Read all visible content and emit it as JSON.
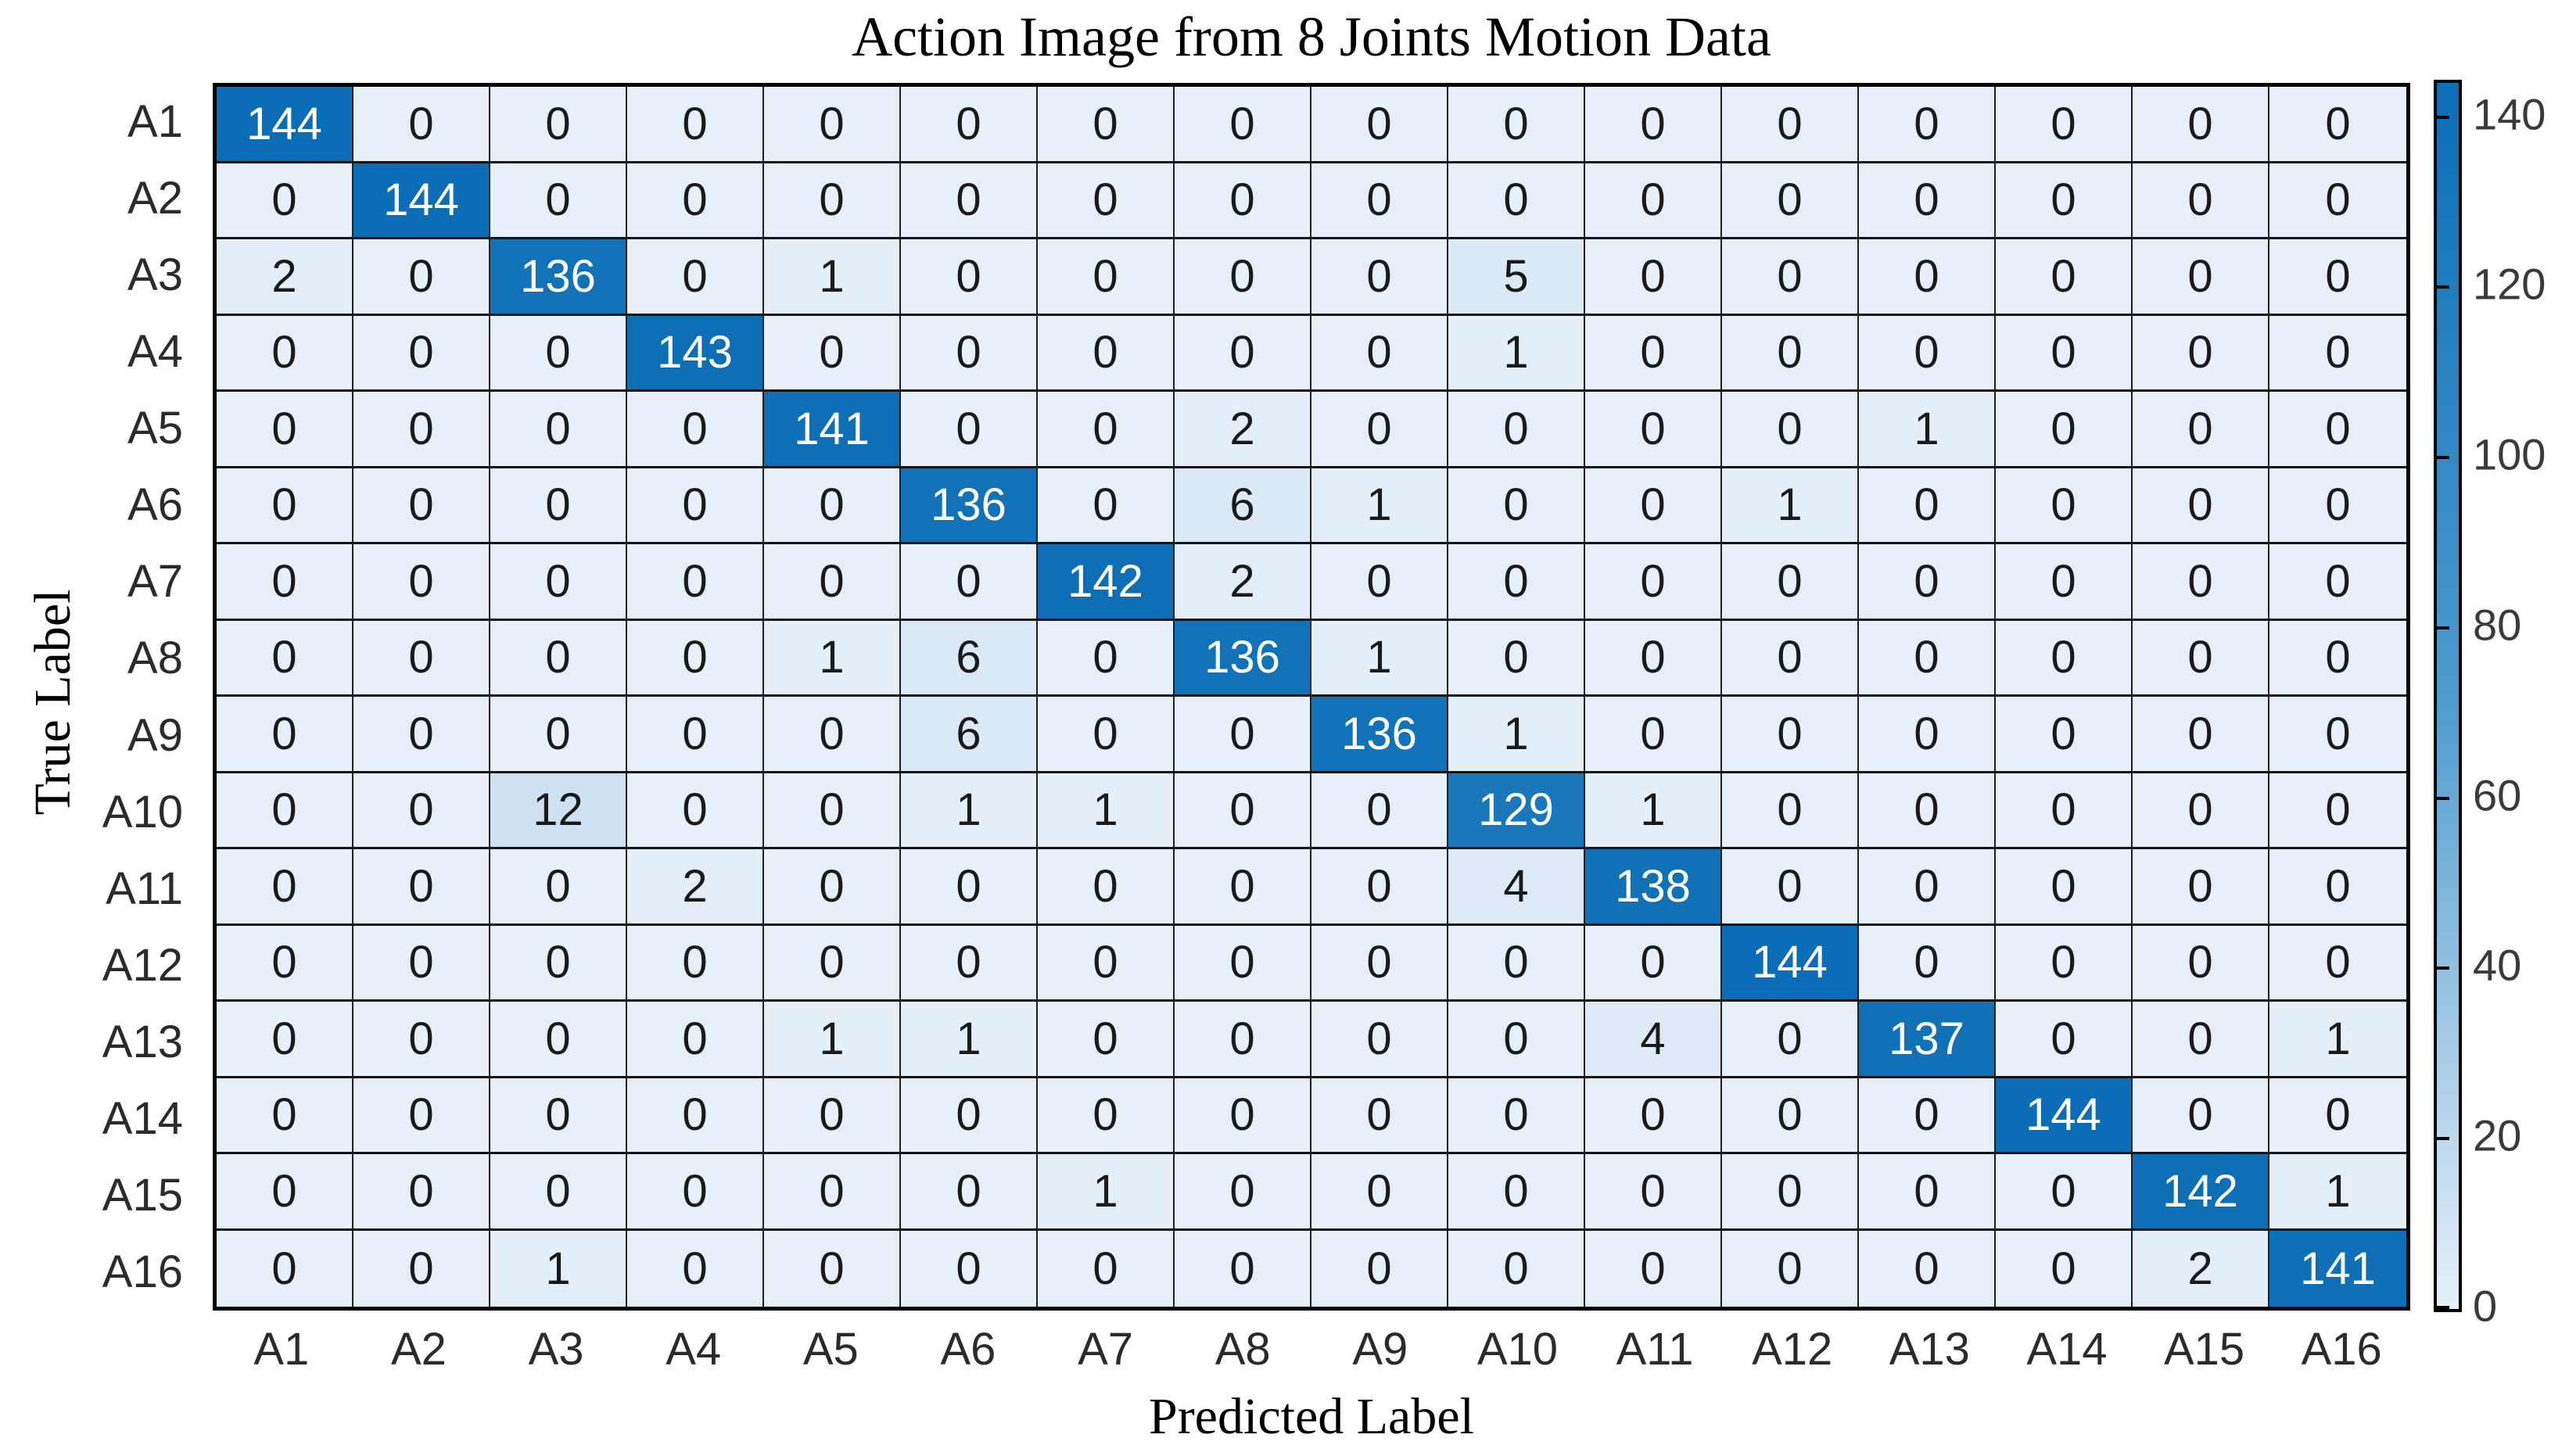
{
  "chart_data": {
    "type": "heatmap",
    "title": "Action Image from 8 Joints Motion Data",
    "xlabel": "Predicted Label",
    "ylabel": "True Label",
    "x_labels": [
      "A1",
      "A2",
      "A3",
      "A4",
      "A5",
      "A6",
      "A7",
      "A8",
      "A9",
      "A10",
      "A11",
      "A12",
      "A13",
      "A14",
      "A15",
      "A16"
    ],
    "y_labels": [
      "A1",
      "A2",
      "A3",
      "A4",
      "A5",
      "A6",
      "A7",
      "A8",
      "A9",
      "A10",
      "A11",
      "A12",
      "A13",
      "A14",
      "A15",
      "A16"
    ],
    "matrix": [
      [
        144,
        0,
        0,
        0,
        0,
        0,
        0,
        0,
        0,
        0,
        0,
        0,
        0,
        0,
        0,
        0
      ],
      [
        0,
        144,
        0,
        0,
        0,
        0,
        0,
        0,
        0,
        0,
        0,
        0,
        0,
        0,
        0,
        0
      ],
      [
        2,
        0,
        136,
        0,
        1,
        0,
        0,
        0,
        0,
        5,
        0,
        0,
        0,
        0,
        0,
        0
      ],
      [
        0,
        0,
        0,
        143,
        0,
        0,
        0,
        0,
        0,
        1,
        0,
        0,
        0,
        0,
        0,
        0
      ],
      [
        0,
        0,
        0,
        0,
        141,
        0,
        0,
        2,
        0,
        0,
        0,
        0,
        1,
        0,
        0,
        0
      ],
      [
        0,
        0,
        0,
        0,
        0,
        136,
        0,
        6,
        1,
        0,
        0,
        1,
        0,
        0,
        0,
        0
      ],
      [
        0,
        0,
        0,
        0,
        0,
        0,
        142,
        2,
        0,
        0,
        0,
        0,
        0,
        0,
        0,
        0
      ],
      [
        0,
        0,
        0,
        0,
        1,
        6,
        0,
        136,
        1,
        0,
        0,
        0,
        0,
        0,
        0,
        0
      ],
      [
        0,
        0,
        0,
        0,
        0,
        6,
        0,
        0,
        136,
        1,
        0,
        0,
        0,
        0,
        0,
        0
      ],
      [
        0,
        0,
        12,
        0,
        0,
        1,
        1,
        0,
        0,
        129,
        1,
        0,
        0,
        0,
        0,
        0
      ],
      [
        0,
        0,
        0,
        2,
        0,
        0,
        0,
        0,
        0,
        4,
        138,
        0,
        0,
        0,
        0,
        0
      ],
      [
        0,
        0,
        0,
        0,
        0,
        0,
        0,
        0,
        0,
        0,
        0,
        144,
        0,
        0,
        0,
        0
      ],
      [
        0,
        0,
        0,
        0,
        1,
        1,
        0,
        0,
        0,
        0,
        4,
        0,
        137,
        0,
        0,
        1
      ],
      [
        0,
        0,
        0,
        0,
        0,
        0,
        0,
        0,
        0,
        0,
        0,
        0,
        0,
        144,
        0,
        0
      ],
      [
        0,
        0,
        0,
        0,
        0,
        0,
        1,
        0,
        0,
        0,
        0,
        0,
        0,
        0,
        142,
        1
      ],
      [
        0,
        0,
        1,
        0,
        0,
        0,
        0,
        0,
        0,
        0,
        0,
        0,
        0,
        0,
        2,
        141
      ]
    ],
    "colorbar": {
      "min": 0,
      "max": 144,
      "ticks": [
        0,
        20,
        40,
        60,
        80,
        100,
        120,
        140
      ]
    },
    "layout": {
      "grid": "on",
      "legend_position": "right-colorbar"
    },
    "colors": {
      "heat_high": "#0b6db5",
      "heat_mid": "#4d9bce",
      "heat_low": "#e7f0f9",
      "cell_text_dark": "#1a1a1a",
      "cell_text_light": "#ffffff",
      "gridline": "#1f1f1f",
      "frame": "#000000"
    }
  }
}
